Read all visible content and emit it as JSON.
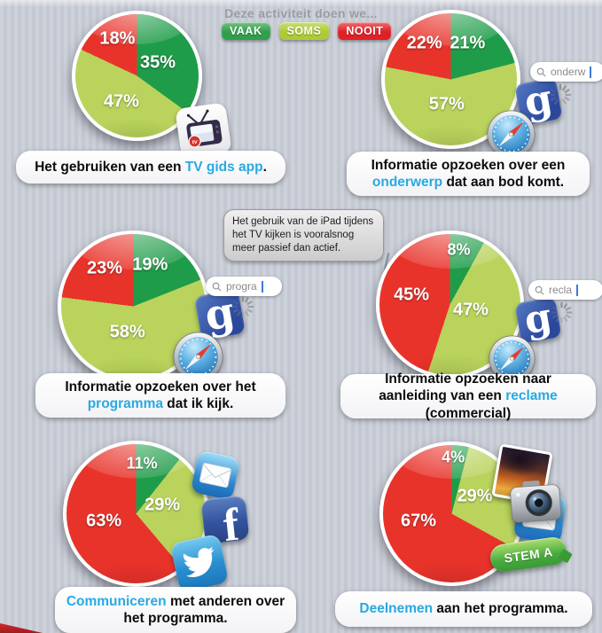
{
  "header": {
    "title": "Deze activiteit doen we...",
    "legend": [
      {
        "label": "VAAK",
        "color": "#2f9f4b"
      },
      {
        "label": "SOMS",
        "color": "#aecb35"
      },
      {
        "label": "NOOIT",
        "color": "#e02127"
      }
    ]
  },
  "note": {
    "text": "Het gebruik van de iPad tijdens het TV kijken is vooralsnog meer passief dan actief."
  },
  "colors": {
    "vaak": "#1f9c49",
    "soms": "#b9d35c",
    "nooit": "#e8332b",
    "highlight": "#29a9e1"
  },
  "icons": {
    "google_letter": "g",
    "facebook_letter": "f",
    "tv_badge": "tv"
  },
  "charts": [
    {
      "caption": [
        {
          "t": "Het gebruiken van een "
        },
        {
          "t": "TV gids app",
          "h": true
        },
        {
          "t": "."
        }
      ]
    },
    {
      "caption": [
        {
          "t": "Informatie opzoeken over een "
        },
        {
          "t": "onderwerp",
          "h": true
        },
        {
          "t": " dat aan bod komt."
        }
      ],
      "search_query": "onderw"
    },
    {
      "caption": [
        {
          "t": "Informatie opzoeken over het "
        },
        {
          "t": "programma",
          "h": true
        },
        {
          "t": " dat ik kijk."
        }
      ],
      "search_query": "progra"
    },
    {
      "caption": [
        {
          "t": "Informatie opzoeken naar aanleiding van een "
        },
        {
          "t": "reclame",
          "h": true
        },
        {
          "t": " (commercial)"
        }
      ],
      "search_query": "recla"
    },
    {
      "caption": [
        {
          "t": "Communiceren",
          "h": true
        },
        {
          "t": " met anderen over het programma."
        }
      ]
    },
    {
      "caption": [
        {
          "t": "Deelnemen",
          "h": true
        },
        {
          "t": " aan het programma."
        }
      ],
      "stem_button_label": "STEM A"
    }
  ],
  "chart_data": [
    {
      "type": "pie",
      "title": "Het gebruiken van een TV gids app.",
      "labels": [
        "VAAK",
        "SOMS",
        "NOOIT"
      ],
      "values": [
        35,
        47,
        18
      ],
      "colors": [
        "#1f9c49",
        "#b9d35c",
        "#e8332b"
      ],
      "start_angle_deg": 0,
      "direction": "clockwise"
    },
    {
      "type": "pie",
      "title": "Informatie opzoeken over een onderwerp dat aan bod komt.",
      "labels": [
        "VAAK",
        "SOMS",
        "NOOIT"
      ],
      "values": [
        21,
        57,
        22
      ],
      "colors": [
        "#1f9c49",
        "#b9d35c",
        "#e8332b"
      ],
      "start_angle_deg": 0,
      "direction": "clockwise"
    },
    {
      "type": "pie",
      "title": "Informatie opzoeken over het programma dat ik kijk.",
      "labels": [
        "VAAK",
        "SOMS",
        "NOOIT"
      ],
      "values": [
        19,
        58,
        23
      ],
      "colors": [
        "#1f9c49",
        "#b9d35c",
        "#e8332b"
      ],
      "start_angle_deg": 0,
      "direction": "clockwise"
    },
    {
      "type": "pie",
      "title": "Informatie opzoeken naar aanleiding van een reclame (commercial)",
      "labels": [
        "VAAK",
        "SOMS",
        "NOOIT"
      ],
      "values": [
        8,
        47,
        45
      ],
      "colors": [
        "#1f9c49",
        "#b9d35c",
        "#e8332b"
      ],
      "start_angle_deg": 0,
      "direction": "clockwise"
    },
    {
      "type": "pie",
      "title": "Communiceren met anderen over het programma.",
      "labels": [
        "VAAK",
        "SOMS",
        "NOOIT"
      ],
      "values": [
        11,
        29,
        63
      ],
      "colors": [
        "#1f9c49",
        "#b9d35c",
        "#e8332b"
      ],
      "start_angle_deg": 0,
      "direction": "clockwise"
    },
    {
      "type": "pie",
      "title": "Deelnemen aan het programma.",
      "labels": [
        "VAAK",
        "SOMS",
        "NOOIT"
      ],
      "values": [
        4,
        29,
        67
      ],
      "colors": [
        "#1f9c49",
        "#b9d35c",
        "#e8332b"
      ],
      "start_angle_deg": 0,
      "direction": "clockwise"
    }
  ]
}
